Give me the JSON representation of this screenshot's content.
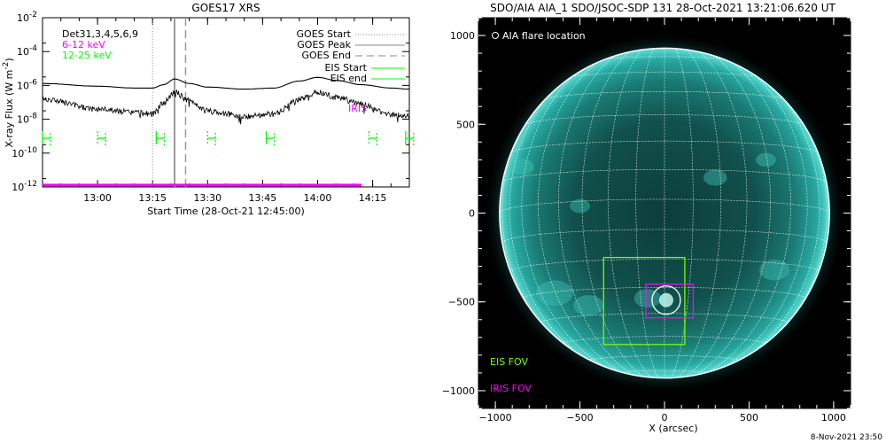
{
  "left_chart": {
    "title": "GOES17 XRS",
    "xlabel": "Start Time (28-Oct-21 12:45:00)",
    "ylabel": "X-ray Flux (W m",
    "ylabel_sup": "-2",
    "ylabel_close": ")",
    "detectors": "Det31,3,4,5,6,9",
    "band_low": "6-12 keV",
    "band_high": "12-25 keV",
    "legend_goes_start": "GOES Start",
    "legend_goes_peak": "GOES Peak",
    "legend_goes_end": "GOES End",
    "legend_eis_start": "EIS Start",
    "legend_eis_end": "EIS end",
    "iris_label": "IRIS",
    "colors": {
      "band_low": "#ff00ff",
      "band_high": "#00ff00",
      "eis": "#00ff00",
      "iris": "#ff00ff",
      "goes_lines": "#a0a0a0"
    }
  },
  "right_chart": {
    "title": "SDO/AIA AIA_1 SDO/JSOC-SDP 131 28-Oct-2021 13:21:06.620 UT",
    "xlabel": "X (arcsec)",
    "flare_legend": "AIA flare location",
    "eis_fov_label": "EIS FOV",
    "iris_fov_label": "IRIS FOV",
    "colors": {
      "eis_fov": "#7cfc00",
      "iris_fov": "#ff00ff",
      "disk": "#1f9c98",
      "background": "#000000"
    }
  },
  "footer_date": "8-Nov-2021 23:50",
  "chart_data": [
    {
      "type": "line",
      "title": "GOES17 XRS",
      "xlabel": "Start Time (28-Oct-21 12:45:00)",
      "ylabel": "X-ray Flux (W m-2)",
      "ylog": true,
      "ylim": [
        1e-12,
        0.01
      ],
      "xlim": [
        "12:45",
        "14:25"
      ],
      "x_ticks": [
        "13:00",
        "13:15",
        "13:30",
        "13:45",
        "14:00",
        "14:15"
      ],
      "y_ticks": [
        1e-12,
        1e-10,
        1e-08,
        1e-06,
        0.0001,
        0.01
      ],
      "y_tick_labels": [
        {
          "base": "10",
          "exp": "-12"
        },
        {
          "base": "10",
          "exp": "-10"
        },
        {
          "base": "10",
          "exp": "-8"
        },
        {
          "base": "10",
          "exp": "-6"
        },
        {
          "base": "10",
          "exp": "-4"
        },
        {
          "base": "10",
          "exp": "-2"
        }
      ],
      "series": [
        {
          "style": "solid",
          "x": [
            "12:45",
            "13:00",
            "13:10",
            "13:15",
            "13:18",
            "13:21",
            "13:25",
            "13:30",
            "13:40",
            "13:48",
            "13:55",
            "14:00",
            "14:05",
            "14:12",
            "14:20",
            "14:25"
          ],
          "y": [
            1.3e-06,
            9e-07,
            7e-07,
            7e-07,
            1.1e-06,
            2.4e-06,
            1.3e-06,
            8e-07,
            6e-07,
            7e-07,
            1.8e-06,
            3e-06,
            2e-06,
            1.1e-06,
            7e-07,
            6e-07
          ]
        },
        {
          "style": "noisy",
          "x": [
            "12:45",
            "13:00",
            "13:10",
            "13:15",
            "13:18",
            "13:21",
            "13:25",
            "13:30",
            "13:40",
            "13:48",
            "13:55",
            "14:00",
            "14:05",
            "14:12",
            "14:20",
            "14:25"
          ],
          "y": [
            1.5e-07,
            4e-08,
            2.5e-08,
            2e-08,
            1e-07,
            4e-07,
            1.2e-07,
            3e-08,
            1.5e-08,
            2e-08,
            1.5e-07,
            4e-07,
            2e-07,
            8e-08,
            1.8e-08,
            1.5e-08
          ]
        }
      ],
      "markers": {
        "goes_start": "13:15",
        "goes_peak": "13:21",
        "goes_end": "13:24",
        "iris_obs": [
          "12:45",
          "14:12"
        ]
      }
    },
    {
      "type": "scatter",
      "title": "SDO/AIA AIA_1 SDO/JSOC-SDP 131 28-Oct-2021 13:21:06.620 UT",
      "xlabel": "X (arcsec)",
      "xlim": [
        -1100,
        1100
      ],
      "ylim": [
        -1100,
        1100
      ],
      "x_ticks": [
        -1000,
        -500,
        0,
        500,
        1000
      ],
      "y_ticks": [
        -1000,
        -500,
        0,
        500,
        1000
      ],
      "solar_radius": 975,
      "flare_location": [
        10,
        -490
      ],
      "eis_fov": {
        "x": [
          -360,
          120
        ],
        "y": [
          -740,
          -250
        ]
      },
      "iris_fov": {
        "x": [
          -110,
          170
        ],
        "y": [
          -590,
          -400
        ]
      }
    }
  ]
}
